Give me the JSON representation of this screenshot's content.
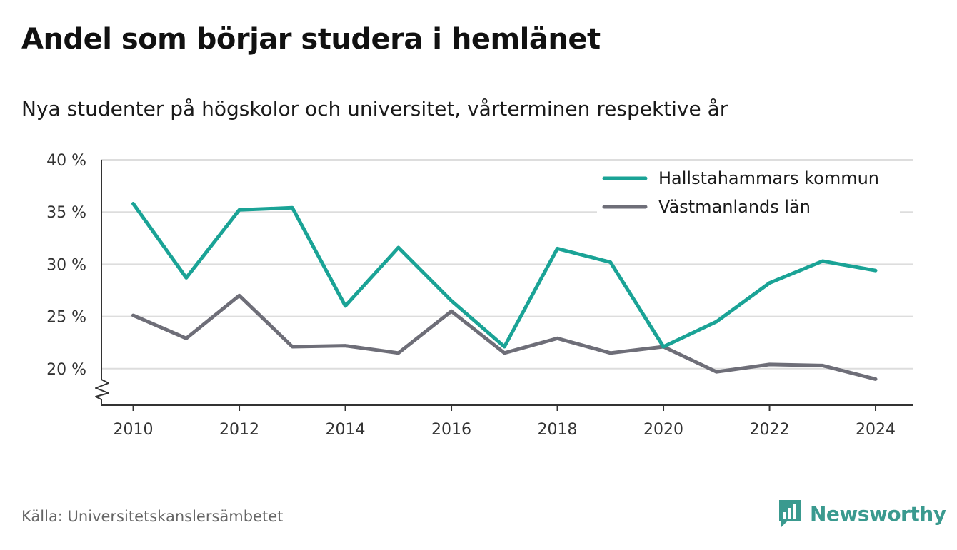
{
  "title": "Andel som börjar studera i hemlänet",
  "subtitle": "Nya studenter på högskolor och universitet, vårterminen respektive år",
  "source": "Källa: Universitetskanslersämbetet",
  "brand": "Newsworthy",
  "colors": {
    "accent": "#1aa396",
    "secondary": "#6e6e78",
    "grid": "#dddddd",
    "brand": "#3a9a8f"
  },
  "chart_data": {
    "type": "line",
    "x": [
      2010,
      2011,
      2012,
      2013,
      2014,
      2015,
      2016,
      2017,
      2018,
      2019,
      2020,
      2021,
      2022,
      2023,
      2024
    ],
    "series": [
      {
        "name": "Hallstahammars kommun",
        "color": "#1aa396",
        "values": [
          35.8,
          28.7,
          35.2,
          35.4,
          26.0,
          31.6,
          26.5,
          22.1,
          31.5,
          30.2,
          22.1,
          24.5,
          28.2,
          30.3,
          29.4
        ]
      },
      {
        "name": "Västmanlands län",
        "color": "#6e6e78",
        "values": [
          25.1,
          22.9,
          27.0,
          22.1,
          22.2,
          21.5,
          25.5,
          21.5,
          22.9,
          21.5,
          22.1,
          19.7,
          20.4,
          20.3,
          19.0
        ]
      }
    ],
    "xticks": [
      2010,
      2012,
      2014,
      2016,
      2018,
      2020,
      2022,
      2024
    ],
    "xtick_labels": [
      "2010",
      "2012",
      "2014",
      "2016",
      "2018",
      "2020",
      "2022",
      "2024"
    ],
    "yticks": [
      20,
      25,
      30,
      35,
      40
    ],
    "ytick_labels": [
      "20 %",
      "25 %",
      "30 %",
      "35 %",
      "40 %"
    ],
    "ylim": [
      16.5,
      40
    ],
    "xlim": [
      2009.4,
      2024.7
    ],
    "grid": true,
    "axis_break": true,
    "legend_position": "top-right"
  }
}
